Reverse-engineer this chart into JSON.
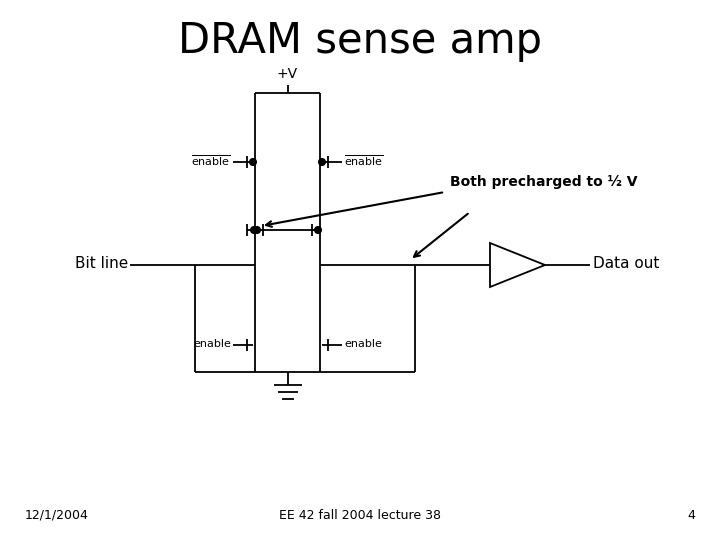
{
  "title": "DRAM sense amp",
  "title_fontsize": 30,
  "vdd_label": "+V",
  "enable_bar_label": "enable",
  "enable_label": "enable",
  "both_precharged_text": "Both precharged to ½ V",
  "bit_line_text": "Bit line",
  "data_out_text": "Data out",
  "date_text": "12/1/2004",
  "lecture_text": "EE 42 fall 2004 lecture 38",
  "page_text": "4",
  "bg_color": "#ffffff",
  "line_color": "#000000"
}
